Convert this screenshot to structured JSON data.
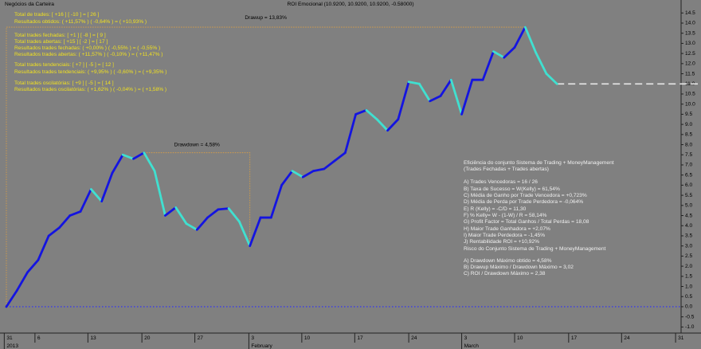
{
  "chart_data": {
    "type": "line",
    "title": "ROI Emocional (10.9200, 10.9200, 10.9200, -0.58000)",
    "x": [
      0,
      1,
      2,
      3,
      4,
      5,
      6,
      7,
      8,
      9,
      10,
      11,
      12,
      13,
      14,
      15,
      16,
      17,
      18,
      19,
      20,
      21,
      22,
      23,
      24,
      25,
      26,
      27,
      28,
      29,
      30,
      31,
      32,
      33,
      34,
      35,
      36,
      37,
      38,
      39,
      40,
      41,
      42,
      43,
      44,
      45,
      46,
      47,
      48,
      49,
      50,
      51,
      52
    ],
    "series": [
      {
        "values": [
          0,
          0.8,
          1.7,
          2.3,
          3.5,
          3.9,
          4.5,
          4.7,
          5.8,
          5.2,
          6.6,
          7.5,
          7.3,
          7.6,
          6.7,
          4.5,
          4.9,
          4.1,
          3.8,
          4.4,
          4.8,
          4.85,
          4.2,
          3.0,
          4.4,
          4.4,
          6.0,
          6.7,
          6.4,
          6.7,
          6.8,
          7.2,
          7.6,
          9.5,
          9.7,
          9.25,
          8.7,
          9.25,
          11.1,
          11.0,
          10.15,
          10.4,
          11.2,
          9.5,
          11.2,
          11.2,
          12.6,
          12.3,
          12.8,
          13.8,
          12.55,
          11.5,
          11.0
        ],
        "color": "#1414e0",
        "down_color": "#40e0d0"
      }
    ],
    "projection": {
      "x": [
        52,
        65.3
      ],
      "values": [
        11.0,
        11.0
      ],
      "color": "#e8e8e8"
    },
    "zero_line": {
      "value": 0,
      "color": "#2a2aff"
    },
    "drawup": {
      "label": "Drawup = 13,83%",
      "x": [
        0,
        49
      ],
      "y": [
        0,
        13.8
      ],
      "color": "#e0a040"
    },
    "drawdown": {
      "label": "Drawdown = 4,58%",
      "x": [
        13,
        23
      ],
      "y": [
        3.0,
        7.6
      ],
      "color": "#e0a040"
    },
    "xlim": [
      0,
      65.3
    ],
    "ylim": [
      -1.3,
      15.14
    ],
    "yticks": [
      14.5,
      {
        "value": 14,
        "label": "14.0"
      },
      13.5,
      {
        "value": 13,
        "label": "13.0"
      },
      12.5,
      {
        "value": 12,
        "label": "12.0"
      },
      11.5,
      {
        "value": 11,
        "label": "11.0"
      },
      10.5,
      {
        "value": 10,
        "label": "10.0"
      },
      9.5,
      {
        "value": 9,
        "label": "9.0"
      },
      8.5,
      {
        "value": 8,
        "label": "8.0"
      },
      7.5,
      {
        "value": 7,
        "label": "7.0"
      },
      6.5,
      {
        "value": 6,
        "label": "6.0"
      },
      5.5,
      {
        "value": 5,
        "label": "5.0"
      },
      4.5,
      {
        "value": 4,
        "label": "4.0"
      },
      3.5,
      {
        "value": 3,
        "label": "3.0"
      },
      2.5,
      {
        "value": 2,
        "label": "2.0"
      },
      1.5,
      {
        "value": 1,
        "label": "1.0"
      },
      0.5,
      {
        "value": 0,
        "label": "0.0"
      },
      -0.5,
      {
        "value": -1,
        "label": "-1.0"
      }
    ],
    "xticks": [
      {
        "value": -0.2,
        "label": "31"
      },
      {
        "value": 2.7,
        "label": "6"
      },
      {
        "value": 7.7,
        "label": "13"
      },
      {
        "value": 12.8,
        "label": "20"
      },
      {
        "value": 17.8,
        "label": "27"
      },
      {
        "value": 22.9,
        "label": "3"
      },
      {
        "value": 27.9,
        "label": "10"
      },
      {
        "value": 32.9,
        "label": "17"
      },
      {
        "value": 38,
        "label": "24"
      },
      {
        "value": 43,
        "label": "3"
      },
      {
        "value": 48,
        "label": "10"
      },
      {
        "value": 53.1,
        "label": "17"
      },
      {
        "value": 58.1,
        "label": "24"
      },
      {
        "value": 63.2,
        "label": "31"
      }
    ],
    "xticks2": [
      {
        "value": -0.2,
        "label": "2013"
      },
      {
        "value": 22.9,
        "label": "February"
      },
      {
        "value": 43,
        "label": "March"
      }
    ],
    "left_panel": {
      "heading": "Negócios da Carteira",
      "color": "#f0e020",
      "lines": [
        "Total de trades: [ +16 ] [ -10 ] = [ 26 ]",
        "Resultados obtidos: ( +11,57% ) ( -0,64% ) = ( +10,93% )",
        "Total trades fechadas: [ +1 ] [ -8 ] = [ 9 ]",
        "Total trades abertas: [ +15 ] [ -2 ] = [ 17 ]",
        "Resultados trades fechadas: ( +0,00% ) ( -0,55% ) = ( -0,55% )",
        "Resultados trades abertas: ( +11,57% ) ( -0,10% ) = ( +11,47% )",
        "Total trades tendenciais: [ +7 ] [ -5 ] = [ 12 ]",
        "Resultados trades tendenciais: ( +9,95% ) ( -0,60% ) = ( +9,35% )",
        "Total trades oscilatórias: [ +9 ] [ -5 ] = [ 14 ]",
        "Resultados trades oscilatórias: ( +1,62% ) ( -0,04% ) = ( +1,58% )"
      ]
    },
    "right_panel": {
      "color": "#f0f0f0",
      "lines": [
        "Eficiência do conjunto Sistema de Trading + MoneyManagement",
        "(Trades Fechadas + Trades abertas)",
        "A) Trades Vencedoras = 16 / 26",
        "B) Taxa de Sucesso = W(Kelly) = 61,54%",
        "C) Média de Ganho por Trade Vencedora = +0,723%",
        "D) Média de Perda por Trade Perdedora = -0,064%",
        "E) R (Kelly) = -C/D = 11,30",
        "F) % Kelly= W - (1-W) / R = 58,14%",
        "G) Profit Factor = Total Ganhos / Total Perdas = 18,08",
        "H) Maior Trade Ganhadora = +2,07%",
        "I) Maior Trade Perdedora = -1,45%",
        "J) Rentabilidade ROI = +10,92%",
        "Risco do Conjunto Sistema de Trading + MoneyManagement",
        "A) Drawdown Máximo obtido = 4,58%",
        "B) Drawup Máximo / Drawdown Máximo = 3,02",
        "C) ROI / Drawdown Máximo = 2,38"
      ]
    }
  }
}
